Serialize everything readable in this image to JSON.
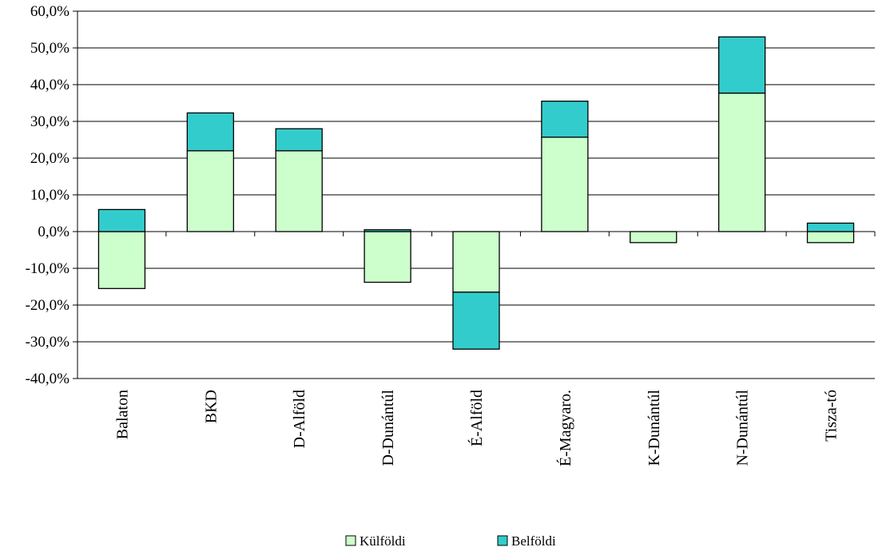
{
  "chart_data": {
    "type": "bar",
    "stacked": true,
    "categories": [
      "Balaton",
      "BKD",
      "D-Alföld",
      "D-Dunántúl",
      "É-Alföld",
      "É-Magyaro.",
      "K-Dunántúl",
      "N-Dunántúl",
      "Tisza-tó"
    ],
    "series": [
      {
        "name": "Külföldi",
        "color": "#ccffcc",
        "values": [
          -15.5,
          22.0,
          22.0,
          -13.8,
          -16.5,
          25.7,
          -3.0,
          37.7,
          -3.0
        ]
      },
      {
        "name": "Belföldi",
        "color": "#33cccc",
        "values": [
          6.0,
          10.3,
          6.0,
          0.5,
          -15.5,
          9.8,
          0.0,
          15.3,
          2.3
        ]
      }
    ],
    "ylim": [
      -40,
      60
    ],
    "y_ticks": [
      60,
      50,
      40,
      30,
      20,
      10,
      0,
      -10,
      -20,
      -30,
      -40
    ],
    "y_tick_labels": [
      "60,0%",
      "50,0%",
      "40,0%",
      "30,0%",
      "20,0%",
      "10,0%",
      "0,0%",
      "-10,0%",
      "-20,0%",
      "-30,0%",
      "-40,0%"
    ],
    "grid": true,
    "legend_position": "bottom",
    "xlabel": "",
    "ylabel": "",
    "title": ""
  }
}
